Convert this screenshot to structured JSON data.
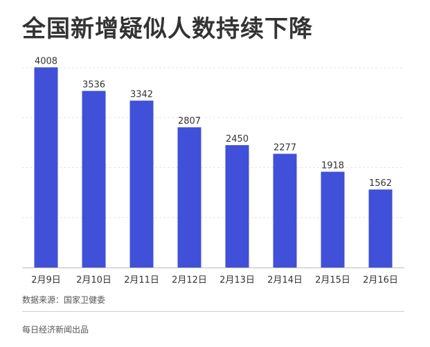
{
  "chart_data": {
    "type": "bar",
    "title": "全国新增疑似人数持续下降",
    "categories": [
      "2月9日",
      "2月10日",
      "2月11日",
      "2月12日",
      "2月13日",
      "2月14日",
      "2月15日",
      "2月16日"
    ],
    "values": [
      4008,
      3536,
      3342,
      2807,
      2450,
      2277,
      1918,
      1562
    ],
    "ylim": [
      0,
      4000
    ],
    "grid": true,
    "bar_color": "#4050d8",
    "source": "数据来源：国家卫健委",
    "footer": "每日经济新闻出品"
  }
}
